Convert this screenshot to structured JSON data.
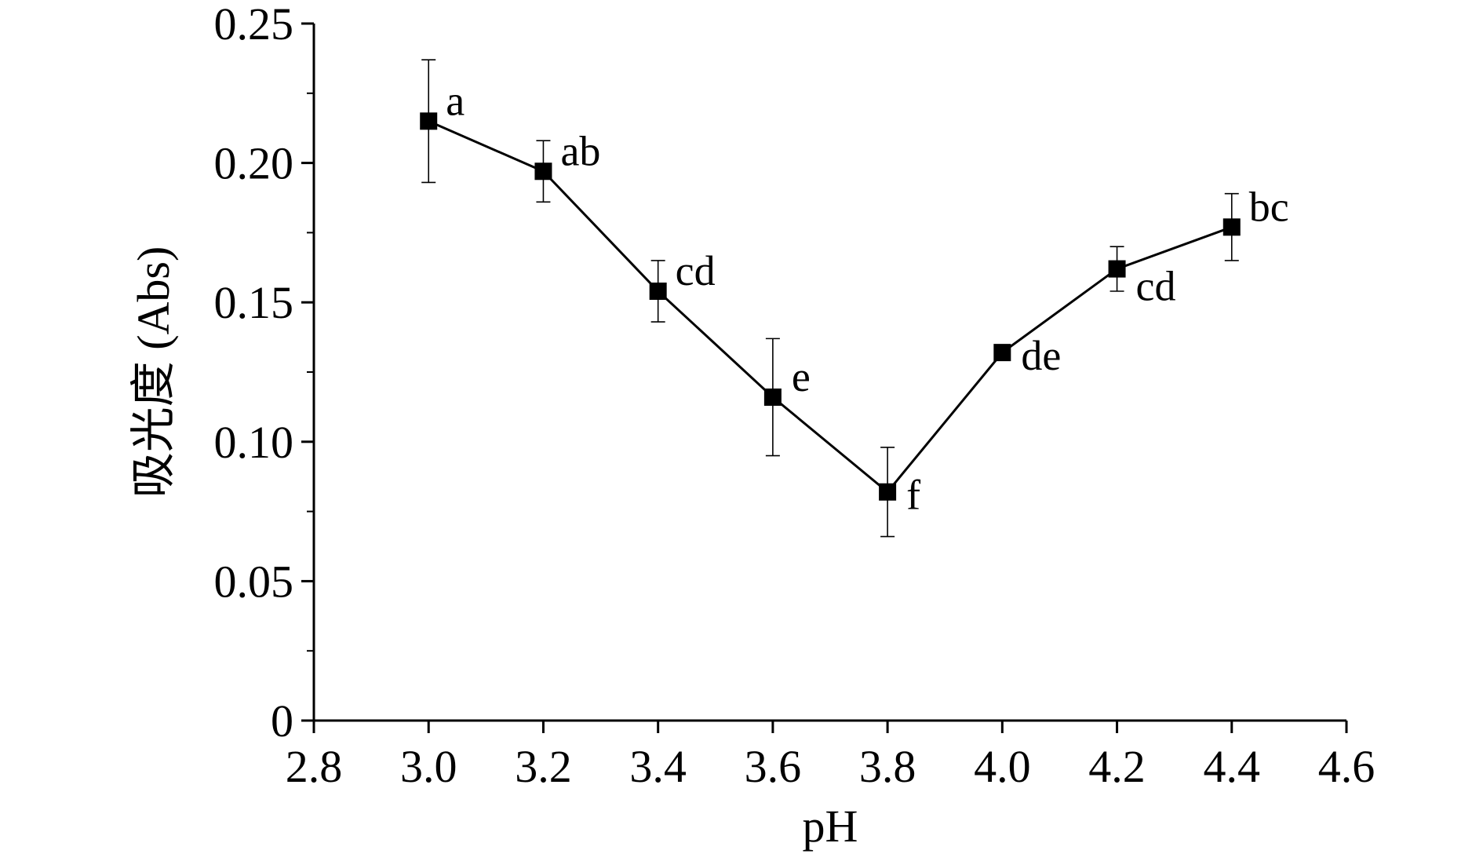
{
  "chart_data": {
    "type": "line",
    "title": "",
    "xlabel": "pH",
    "ylabel": "吸光度 (Abs)",
    "xlim": [
      2.8,
      4.6
    ],
    "ylim": [
      0,
      0.25
    ],
    "x_ticks": [
      "2.8",
      "3.0",
      "3.2",
      "3.4",
      "3.6",
      "3.8",
      "4.0",
      "4.2",
      "4.4",
      "4.6"
    ],
    "y_ticks": [
      "0",
      "0.05",
      "0.10",
      "0.15",
      "0.20",
      "0.25"
    ],
    "grid": false,
    "series": [
      {
        "x": [
          3.0,
          3.2,
          3.4,
          3.6,
          3.8,
          4.0,
          4.2,
          4.4
        ],
        "y": [
          0.215,
          0.197,
          0.154,
          0.116,
          0.082,
          0.132,
          0.162,
          0.177
        ],
        "error": [
          0.022,
          0.011,
          0.011,
          0.021,
          0.016,
          0.0,
          0.008,
          0.012
        ],
        "labels": [
          "a",
          "ab",
          "cd",
          "e",
          "f",
          "de",
          "cd",
          "bc"
        ],
        "marker": "square",
        "color": "#000000"
      }
    ]
  }
}
